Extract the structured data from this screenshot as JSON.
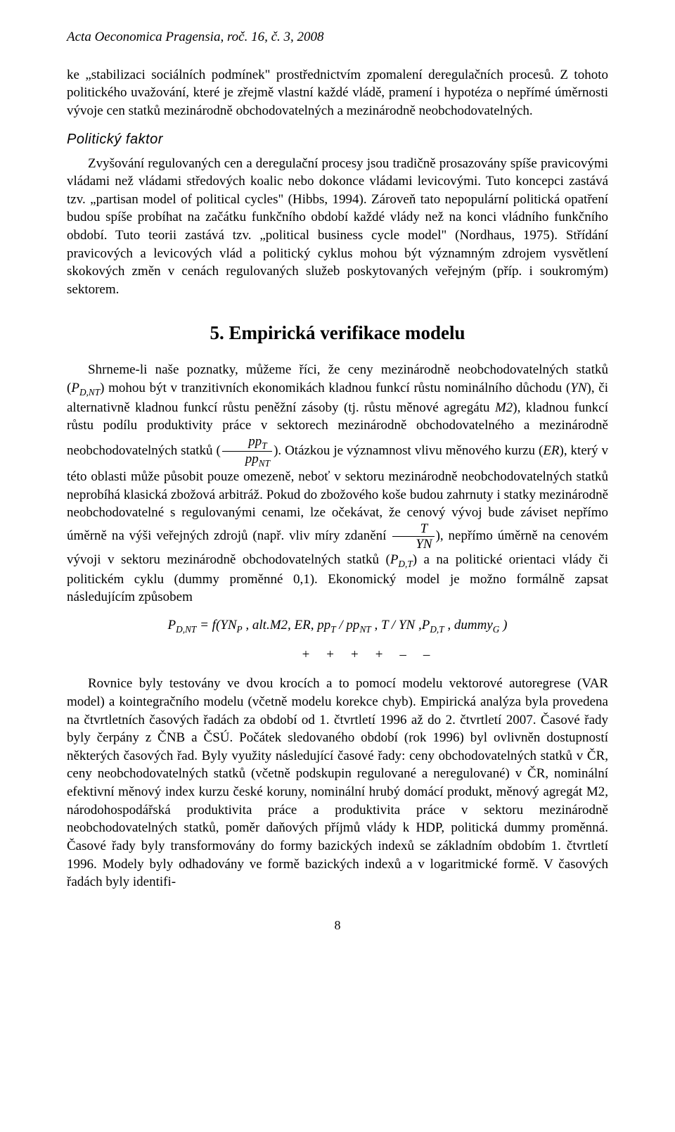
{
  "journal_header": "Acta Oeconomica Pragensia, roč. 16, č. 3, 2008",
  "para1": "ke „stabilizaci sociálních podmínek\" prostřednictvím zpomalení deregulačních procesů. Z tohoto politického uvažování, které je zřejmě vlastní každé vládě, pramení i hypotéza o nepřímé úměrnosti vývoje cen statků mezinárodně obchodovatelných a mezinárodně neobchodovatelných.",
  "subsection_title": "Politický faktor",
  "para2": "Zvyšování regulovaných cen a deregulační procesy jsou tradičně prosazovány spíše pravicovými vládami než vládami středových koalic nebo dokonce vládami levicovými. Tuto koncepci zastává tzv. „partisan model of political cycles\" (Hibbs, 1994). Zároveň tato nepopulární politická opatření budou spíše probíhat na začátku funkčního období každé vlády než na konci vládního funkčního období. Tuto teorii zastává tzv. „political business cycle model\" (Nordhaus, 1975). Střídání pravicových a levicových vlád a politický cyklus mohou být významným zdrojem vysvětlení skokových změn v cenách regulovaných služeb poskytovaných veřejným (příp. i soukromým) sektorem.",
  "section_heading": "5. Empirická verifikace modelu",
  "main_text": {
    "p3_start": "Shrneme-li naše poznatky, můžeme říci, že ceny mezinárodně neobchodovatelných statků (",
    "p3_var1_base": "P",
    "p3_var1_sub": "D,NT",
    "p3_mid1": ") mohou být v tranzitivních ekonomikách kladnou funkcí růstu nominálního důchodu (",
    "p3_yn": "YN",
    "p3_mid2": "), či alternativně kladnou funkcí růstu peněžní zásoby (tj. růstu měnové agregátu ",
    "p3_m2": "M2",
    "p3_mid3": "), kladnou funkcí růstu podílu produktivity práce v sektorech mezinárodně obchodovatelného a mezinárodně neobchodovatelných statků (",
    "p3_frac1_num": "pp",
    "p3_frac1_num_sub": "T",
    "p3_frac1_den": "pp",
    "p3_frac1_den_sub": "NT",
    "p3_mid4": "). Otázkou je významnost vlivu měnového kurzu (",
    "p3_er": "ER",
    "p3_mid5": "), který v této oblasti může působit pouze omezeně, neboť v sektoru mezinárodně neobchodovatelných statků neprobíhá klasická zbožová arbitráž. Pokud do zbožového koše budou zahrnuty i statky mezinárodně neobchodovatelné s regulovanými cenami, lze očekávat, že cenový vývoj bude záviset nepřímo úměrně na výši veřejných zdrojů (např. vliv míry zdanění ",
    "p3_frac2_num": "T",
    "p3_frac2_den": "YN",
    "p3_mid6": "), nepřímo úměrně na cenovém vývoji v sektoru mezinárodně obchodovatelných statků (",
    "p3_var2_base": "P",
    "p3_var2_sub": "D,T",
    "p3_mid7": ") a na politické orientaci vlády či politickém cyklu (dummy proměnné 0,1). Ekonomický model je možno formálně zapsat následujícím způsobem"
  },
  "equation": "P_{D,NT} = f(YN_P, alt.M2, ER, pp_T / pp_{NT}, T / YN, P_{D,T}, dummy_G)",
  "signs_text": "+ + + + – –",
  "para4": "Rovnice byly testovány ve dvou krocích a to pomocí modelu vektorové autoregrese (VAR model) a kointegračního modelu (včetně modelu korekce chyb). Empirická analýza byla provedena na čtvrtletních časových řadách za období od 1. čtvrtletí 1996 až do 2. čtvrtletí 2007. Časové řady byly čerpány z ČNB a ČSÚ. Počátek sledovaného období (rok 1996) byl ovlivněn dostupností některých časových řad. Byly využity následující časové řady: ceny obchodovatelných statků v ČR, ceny neobchodovatelných statků (včetně podskupin regulované a neregulované) v ČR, nominální efektivní měnový index kurzu české koruny, nominální hrubý domácí produkt, měnový agregát M2, národohospodářská produktivita práce a produktivita práce v sektoru mezinárodně neobchodovatelných statků, poměr daňových příjmů vlády k HDP, politická dummy proměnná. Časové řady byly transformovány do formy bazických indexů se základním obdobím 1. čtvrtletí 1996. Modely byly odhadovány ve formě bazických indexů a v logaritmické formě. V časových řadách byly identifi-",
  "page_number": "8"
}
